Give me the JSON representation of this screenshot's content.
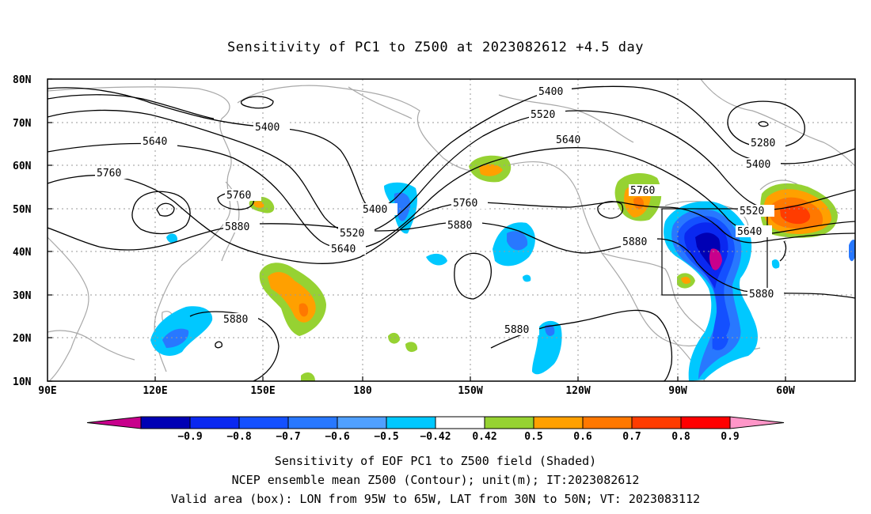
{
  "title": "Sensitivity of PC1 to Z500 at 2023082612 +4.5 day",
  "lat_labels": [
    "80N",
    "70N",
    "60N",
    "50N",
    "40N",
    "30N",
    "20N",
    "10N"
  ],
  "lon_labels": [
    "90E",
    "120E",
    "150E",
    "180",
    "150W",
    "120W",
    "90W",
    "60W"
  ],
  "contour_labels": {
    "c5400a": "5400",
    "c5400b": "5400",
    "c5400c": "5400",
    "c5400d": "5400",
    "c5520a": "5520",
    "c5520b": "5520",
    "c5520c": "5520",
    "c5640a": "5640",
    "c5640b": "5640",
    "c5640c": "5640",
    "c5760a": "5760",
    "c5760b": "5760",
    "c5760c": "5760",
    "c5760d": "5760",
    "c5880a": "5880",
    "c5880b": "5880",
    "c5880c": "5880",
    "c5880d": "5880",
    "c5880e": "5880",
    "c5280": "5280"
  },
  "colorbar": {
    "labels": [
      "-0.9",
      "-0.8",
      "-0.7",
      "-0.6",
      "-0.5",
      "-0.42",
      "0.42",
      "0.5",
      "0.6",
      "0.7",
      "0.8",
      "0.9"
    ],
    "colors": [
      "#c8008c",
      "#0000b4",
      "#0a28f0",
      "#1450ff",
      "#2878ff",
      "#50a0ff",
      "#00c8ff",
      "#ffffff",
      "#96d232",
      "#ffa000",
      "#ff7800",
      "#ff3c00",
      "#ff0000",
      "#ff96c8"
    ]
  },
  "captions": {
    "line1": "Sensitivity of EOF PC1 to Z500 field (Shaded)",
    "line2": "NCEP ensemble mean Z500 (Contour); unit(m); IT:2023082612",
    "line3": "Valid area (box): LON from 95W to 65W, LAT from 30N to 50N; VT: 2023083112"
  }
}
